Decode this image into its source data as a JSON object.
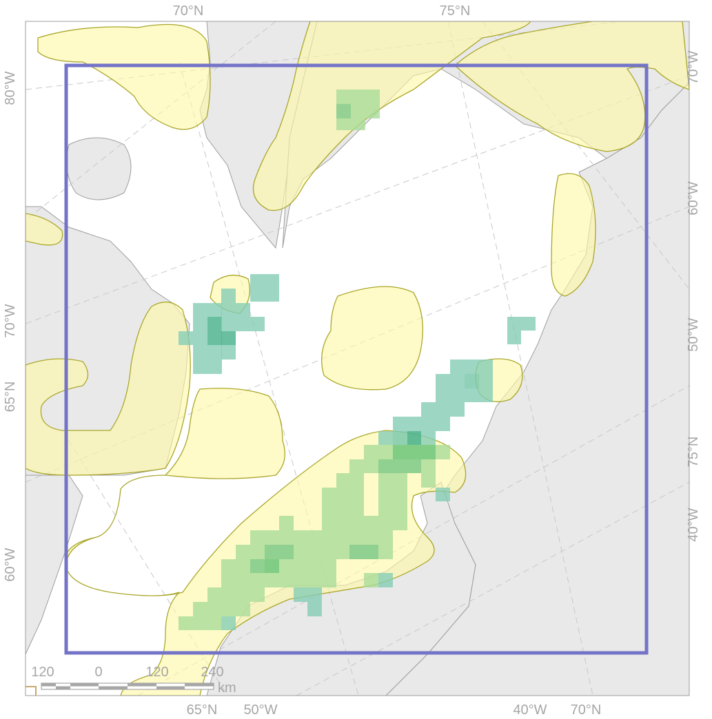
{
  "graticule_labels": {
    "top_left": "70°N",
    "top_right": "75°N",
    "left_top": "80°W",
    "left_mid": "70°W",
    "left_65n": "65°N",
    "left_bottom": "60°W",
    "right_top": "70°W",
    "right_60w": "60°W",
    "right_50w": "50°W",
    "right_75n": "75°N",
    "right_40w": "40°W",
    "bottom_65n": "65°N",
    "bottom_50w": "50°W",
    "bottom_40w": "40°W",
    "bottom_70n": "70°N"
  },
  "scale_bar": {
    "tick_labels": [
      "120",
      "0",
      "120",
      "240"
    ],
    "unit": "km"
  },
  "colors": {
    "land": "#e9e9e9",
    "ocean": "#ffffff",
    "coastline": "#9d9d9d",
    "zone_fill": "#fff9a6",
    "zone_stroke": "#a9a62a",
    "study_area": "#7373c8",
    "graticule": "#c8c8c8",
    "grid_light_green": "#a9dc98",
    "grid_mid_green": "#7cc886",
    "grid_teal": "#84cdb5",
    "grid_dark_teal": "#4fb48f"
  }
}
